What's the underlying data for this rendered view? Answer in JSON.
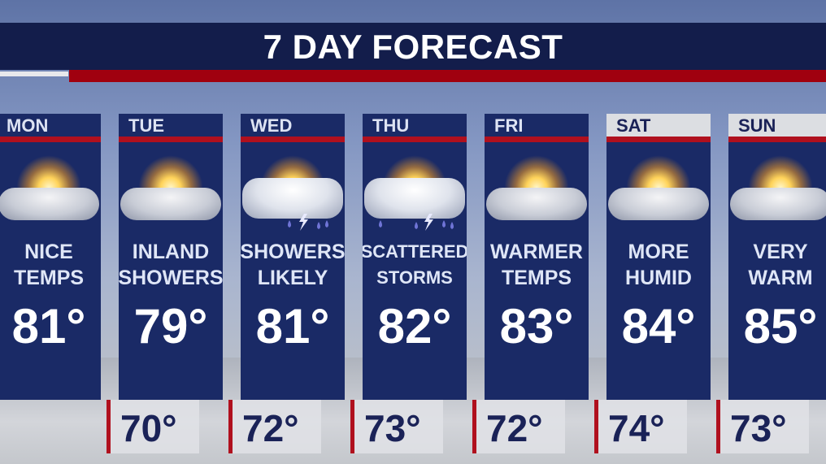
{
  "title": "7 DAY FORECAST",
  "colors": {
    "navy": "#131d4b",
    "panel": "#1a2a66",
    "red": "#a0000f"
  },
  "days": [
    {
      "day": "MON",
      "desc1": "NICE",
      "desc2": "TEMPS",
      "high": "81°",
      "low": null,
      "icon": "partly-sunny-icon"
    },
    {
      "day": "TUE",
      "desc1": "INLAND",
      "desc2": "SHOWERS",
      "high": "79°",
      "low": "70°",
      "icon": "partly-sunny-icon"
    },
    {
      "day": "WED",
      "desc1": "SHOWERS",
      "desc2": "LIKELY",
      "high": "81°",
      "low": "72°",
      "icon": "thunderstorm-icon"
    },
    {
      "day": "THU",
      "desc1": "SCATTERED",
      "desc2": "STORMS",
      "high": "82°",
      "low": "73°",
      "icon": "thunderstorm-icon"
    },
    {
      "day": "FRI",
      "desc1": "WARMER",
      "desc2": "TEMPS",
      "high": "83°",
      "low": "72°",
      "icon": "partly-sunny-icon"
    },
    {
      "day": "SAT",
      "desc1": "MORE",
      "desc2": "HUMID",
      "high": "84°",
      "low": "74°",
      "icon": "partly-sunny-icon"
    },
    {
      "day": "SUN",
      "desc1": "VERY",
      "desc2": "WARM",
      "high": "85°",
      "low": "73°",
      "icon": "partly-sunny-icon"
    }
  ]
}
